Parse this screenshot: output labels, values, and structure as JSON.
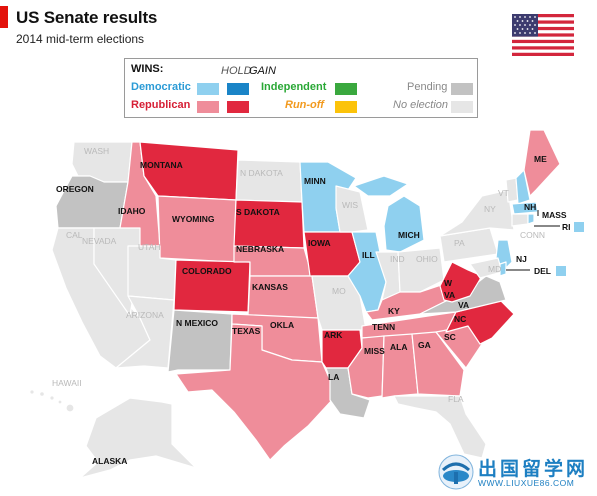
{
  "header": {
    "title": "US Senate results",
    "subtitle": "2014 mid-term elections"
  },
  "legend": {
    "wins": "WINS:",
    "hold": "HOLD",
    "gain": "GAIN",
    "democratic": "Democratic",
    "republican": "Republican",
    "independent": "Independent",
    "runoff": "Run-off",
    "pending": "Pending",
    "no_election": "No election",
    "colors": {
      "dem_hold": "#8fd0ef",
      "dem_gain": "#1a84c7",
      "rep_hold": "#ef8d9a",
      "rep_gain": "#e1283f",
      "independent": "#3aa83e",
      "runoff": "#fcc30a",
      "pending": "#c2c2c2",
      "no_election": "#e6e6e6"
    }
  },
  "map": {
    "states": {
      "wash": "WASH",
      "oregon": "OREGON",
      "cal": "CAL",
      "idaho": "IDAHO",
      "nevada": "NEVADA",
      "montana": "MONTANA",
      "wyoming": "WYOMING",
      "utah": "UTAH",
      "arizona": "ARIZONA",
      "colorado": "COLORADO",
      "n_mexico": "N MEXICO",
      "n_dakota": "N DAKOTA",
      "s_dakota": "S DAKOTA",
      "nebraska": "NEBRASKA",
      "kansas": "KANSAS",
      "okla": "OKLA",
      "texas": "TEXAS",
      "minn": "MINN",
      "iowa": "IOWA",
      "mo": "MO",
      "ark": "ARK",
      "la": "LA",
      "wis": "WIS",
      "ill": "ILL",
      "mich": "MICH",
      "ind": "IND",
      "ohio": "OHIO",
      "ky": "KY",
      "tenn": "TENN",
      "miss": "MISS",
      "ala": "ALA",
      "ga": "GA",
      "fla": "FLA",
      "sc": "SC",
      "nc": "NC",
      "va": "VA",
      "w_va_1": "W",
      "w_va_2": "VA",
      "pa": "PA",
      "ny": "NY",
      "vt": "VT",
      "nh": "NH",
      "me": "ME",
      "mass": "MASS",
      "ri": "RI",
      "conn": "CONN",
      "nj": "NJ",
      "del": "DEL",
      "md": "MD",
      "alaska": "ALASKA",
      "hawaii": "HAWAII"
    }
  },
  "watermark": {
    "chinese": "出国留学网",
    "url": "WWW.LIUXUE86.COM"
  }
}
